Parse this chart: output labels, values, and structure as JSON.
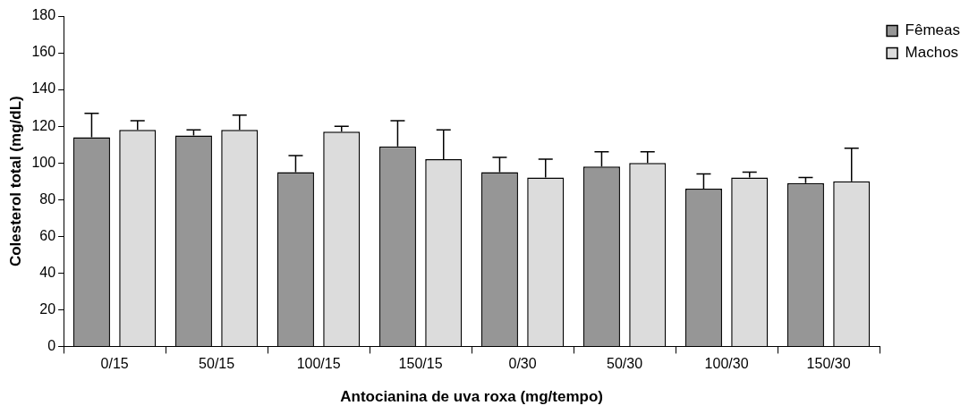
{
  "chart_data": {
    "type": "bar",
    "xlabel": "Antocianina de uva roxa (mg/tempo)",
    "ylabel": "Colesterol total (mg/dL)",
    "categories": [
      "0/15",
      "50/15",
      "100/15",
      "150/15",
      "0/30",
      "50/30",
      "100/30",
      "150/30"
    ],
    "series": [
      {
        "name": "Fêmeas",
        "color": "#969696",
        "values": [
          114,
          115,
          95,
          109,
          95,
          98,
          86,
          89
        ],
        "errors": [
          [
            114,
            127
          ],
          [
            115,
            118
          ],
          [
            95,
            104
          ],
          [
            109,
            123
          ],
          [
            95,
            103
          ],
          [
            98,
            106
          ],
          [
            86,
            94
          ],
          [
            89,
            92
          ]
        ]
      },
      {
        "name": "Machos",
        "color": "#dcdcdc",
        "values": [
          118,
          118,
          117,
          102,
          92,
          100,
          92,
          90
        ],
        "errors": [
          [
            118,
            123
          ],
          [
            118,
            126
          ],
          [
            117,
            120
          ],
          [
            102,
            118
          ],
          [
            92,
            102
          ],
          [
            100,
            106
          ],
          [
            92,
            95
          ],
          [
            90,
            108
          ]
        ]
      }
    ],
    "ylim": [
      0,
      180
    ],
    "yticks": [
      0,
      20,
      40,
      60,
      80,
      100,
      120,
      140,
      160,
      180
    ],
    "grid": false,
    "legend": "right"
  }
}
